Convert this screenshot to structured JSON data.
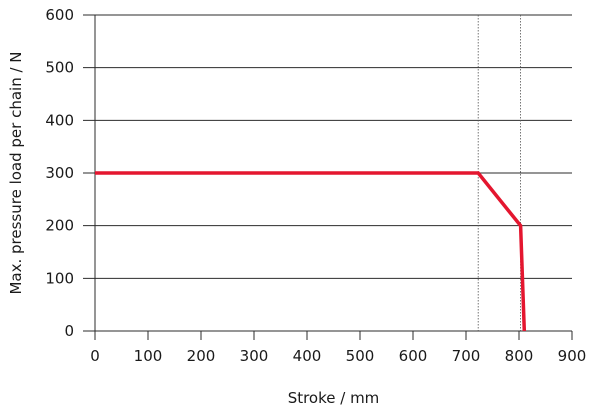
{
  "chart_data": {
    "type": "line",
    "title": "",
    "xlabel": "Stroke / mm",
    "ylabel": "Max. pressure load per chain / N",
    "xlim": [
      0,
      900
    ],
    "ylim": [
      0,
      600
    ],
    "x_ticks": [
      0,
      100,
      200,
      300,
      400,
      500,
      600,
      700,
      800,
      900
    ],
    "y_ticks": [
      0,
      100,
      200,
      300,
      400,
      500,
      600
    ],
    "x_tick_labels": [
      "0",
      "100",
      "200",
      "300",
      "400",
      "500",
      "600",
      "700",
      "800",
      "900"
    ],
    "y_tick_labels": [
      "0",
      "100",
      "200",
      "300",
      "400",
      "500",
      "600"
    ],
    "grid": "horizontal",
    "reference_lines_x": [
      723,
      803
    ],
    "series": [
      {
        "color": "#e4162f",
        "points": [
          {
            "x": 0,
            "y": 300
          },
          {
            "x": 723,
            "y": 300
          },
          {
            "x": 803,
            "y": 200
          },
          {
            "x": 810,
            "y": 0
          }
        ]
      }
    ]
  }
}
